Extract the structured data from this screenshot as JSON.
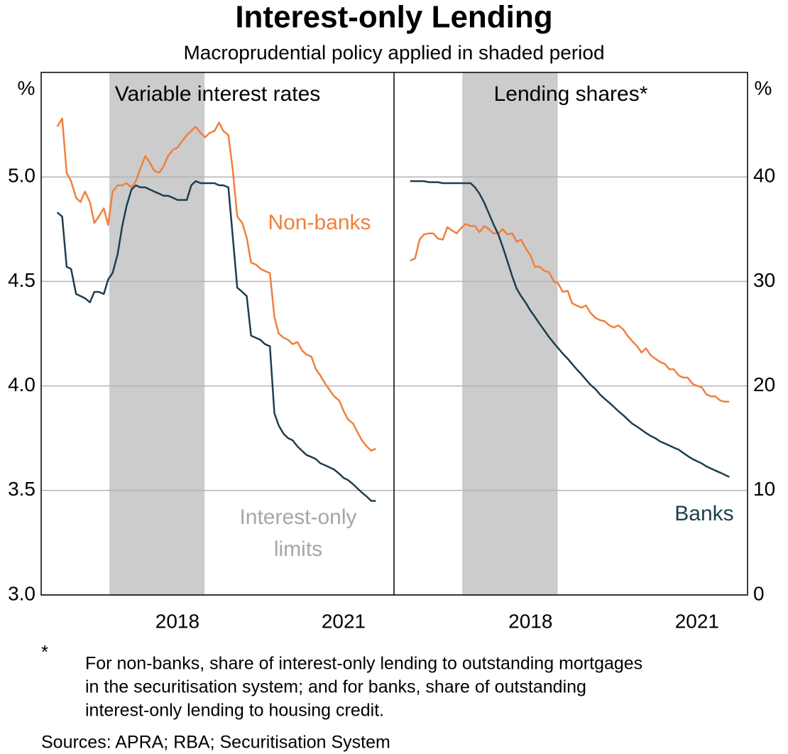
{
  "title": "Interest-only Lending",
  "subtitle": "Macroprudential policy applied in shaded period",
  "footnote": {
    "marker": "*",
    "lines": [
      "For non-banks, share of interest-only lending to outstanding mortgages",
      "in the securitisation system; and for banks, share of outstanding",
      "interest-only lending to housing credit."
    ]
  },
  "sources": "Sources: APRA; RBA; Securitisation System",
  "chart_data": [
    {
      "type": "line",
      "title": "Variable interest rates",
      "y_unit": "%",
      "xlim": [
        2016.04,
        2022.41
      ],
      "xticks": [
        {
          "value": 2018.5,
          "label": "2018"
        },
        {
          "value": 2021.5,
          "label": "2021"
        }
      ],
      "ylim": [
        3,
        5.5
      ],
      "yticks": [
        {
          "value": 3,
          "label": "3.0"
        },
        {
          "value": 3.5,
          "label": "3.5"
        },
        {
          "value": 4,
          "label": "4.0"
        },
        {
          "value": 4.5,
          "label": "4.5"
        },
        {
          "value": 5,
          "label": "5.0"
        }
      ],
      "grid": true,
      "shaded": [
        2017.27,
        2018.99
      ],
      "shaded_label": [
        "Interest-only",
        "limits"
      ],
      "x": [
        2016.33,
        2016.42,
        2016.5,
        2016.58,
        2016.67,
        2016.75,
        2016.83,
        2016.92,
        2017.0,
        2017.08,
        2017.17,
        2017.25,
        2017.33,
        2017.42,
        2017.5,
        2017.58,
        2017.67,
        2017.75,
        2017.83,
        2017.92,
        2018.0,
        2018.08,
        2018.17,
        2018.25,
        2018.33,
        2018.42,
        2018.5,
        2018.58,
        2018.67,
        2018.75,
        2018.83,
        2018.92,
        2019.0,
        2019.08,
        2019.17,
        2019.25,
        2019.33,
        2019.42,
        2019.5,
        2019.58,
        2019.67,
        2019.75,
        2019.83,
        2019.92,
        2020.0,
        2020.08,
        2020.17,
        2020.25,
        2020.33,
        2020.42,
        2020.5,
        2020.58,
        2020.67,
        2020.75,
        2020.83,
        2020.92,
        2021.0,
        2021.08,
        2021.17,
        2021.25,
        2021.33,
        2021.42,
        2021.5,
        2021.58,
        2021.67,
        2021.75,
        2021.83,
        2021.92,
        2022.0,
        2022.08
      ],
      "series": [
        {
          "name": "Non-banks",
          "color": "#f0803c",
          "show_name": true,
          "values": [
            5.24,
            5.28,
            5.02,
            4.98,
            4.9,
            4.88,
            4.93,
            4.88,
            4.78,
            4.81,
            4.85,
            4.77,
            4.93,
            4.96,
            4.96,
            4.97,
            4.95,
            4.98,
            5.04,
            5.1,
            5.07,
            5.03,
            5.02,
            5.05,
            5.1,
            5.13,
            5.14,
            5.17,
            5.2,
            5.22,
            5.24,
            5.21,
            5.19,
            5.21,
            5.22,
            5.26,
            5.22,
            5.2,
            5.03,
            4.81,
            4.78,
            4.71,
            4.59,
            4.58,
            4.56,
            4.55,
            4.54,
            4.33,
            4.25,
            4.23,
            4.22,
            4.2,
            4.21,
            4.17,
            4.15,
            4.14,
            4.08,
            4.05,
            4.01,
            3.98,
            3.95,
            3.93,
            3.88,
            3.84,
            3.82,
            3.78,
            3.74,
            3.71,
            3.69,
            3.7
          ]
        },
        {
          "name": "Banks",
          "color": "#1c3f4e",
          "show_name": false,
          "values": [
            4.83,
            4.81,
            4.57,
            4.56,
            4.44,
            4.43,
            4.42,
            4.4,
            4.45,
            4.45,
            4.44,
            4.51,
            4.54,
            4.63,
            4.76,
            4.86,
            4.94,
            4.96,
            4.95,
            4.95,
            4.94,
            4.93,
            4.92,
            4.91,
            4.91,
            4.9,
            4.89,
            4.89,
            4.89,
            4.96,
            4.98,
            4.97,
            4.97,
            4.97,
            4.97,
            4.96,
            4.96,
            4.95,
            4.71,
            4.47,
            4.45,
            4.43,
            4.24,
            4.23,
            4.22,
            4.2,
            4.19,
            3.87,
            3.81,
            3.77,
            3.75,
            3.74,
            3.71,
            3.69,
            3.67,
            3.66,
            3.65,
            3.63,
            3.62,
            3.61,
            3.6,
            3.58,
            3.56,
            3.55,
            3.53,
            3.51,
            3.49,
            3.47,
            3.45,
            3.45
          ]
        }
      ]
    },
    {
      "type": "line",
      "title": "Lending shares*",
      "y_unit": "%",
      "xlim": [
        2016.04,
        2022.41
      ],
      "xticks": [
        {
          "value": 2018.5,
          "label": "2018"
        },
        {
          "value": 2021.5,
          "label": "2021"
        }
      ],
      "ylim": [
        0,
        50
      ],
      "yticks": [
        0,
        10,
        20,
        30,
        40
      ],
      "grid": true,
      "shaded": [
        2017.27,
        2018.99
      ],
      "x": [
        2016.33,
        2016.42,
        2016.5,
        2016.58,
        2016.67,
        2016.75,
        2016.83,
        2016.92,
        2017.0,
        2017.08,
        2017.17,
        2017.25,
        2017.33,
        2017.42,
        2017.5,
        2017.58,
        2017.67,
        2017.75,
        2017.83,
        2017.92,
        2018.0,
        2018.08,
        2018.17,
        2018.25,
        2018.33,
        2018.42,
        2018.5,
        2018.58,
        2018.67,
        2018.75,
        2018.83,
        2018.92,
        2019.0,
        2019.08,
        2019.17,
        2019.25,
        2019.33,
        2019.42,
        2019.5,
        2019.58,
        2019.67,
        2019.75,
        2019.83,
        2019.92,
        2020.0,
        2020.08,
        2020.17,
        2020.25,
        2020.33,
        2020.42,
        2020.5,
        2020.58,
        2020.67,
        2020.75,
        2020.83,
        2020.92,
        2021.0,
        2021.08,
        2021.17,
        2021.25,
        2021.33,
        2021.42,
        2021.5,
        2021.58,
        2021.67,
        2021.75,
        2021.83,
        2021.92,
        2022.0,
        2022.08
      ],
      "series": [
        {
          "name": "Non-banks",
          "color": "#f0803c",
          "show_name": false,
          "values": [
            32.0,
            32.2,
            34.0,
            34.5,
            34.6,
            34.6,
            34.1,
            34.0,
            35.2,
            34.9,
            34.6,
            35.1,
            35.5,
            35.3,
            35.3,
            34.7,
            35.3,
            35.0,
            34.6,
            34.6,
            35.0,
            34.5,
            34.6,
            33.8,
            34.0,
            33.1,
            32.5,
            31.4,
            31.4,
            31.0,
            30.9,
            30.0,
            29.8,
            29.0,
            29.1,
            27.9,
            27.7,
            27.5,
            27.7,
            27.0,
            26.5,
            26.3,
            26.2,
            25.8,
            25.6,
            25.8,
            25.4,
            24.8,
            24.3,
            23.8,
            23.2,
            23.6,
            22.9,
            22.6,
            22.3,
            22.1,
            21.6,
            21.6,
            21.0,
            20.8,
            20.8,
            20.2,
            20.0,
            19.9,
            19.2,
            19.0,
            19.0,
            18.6,
            18.5,
            18.5
          ]
        },
        {
          "name": "Banks",
          "color": "#1c3f4e",
          "show_name": true,
          "values": [
            39.6,
            39.6,
            39.6,
            39.6,
            39.5,
            39.5,
            39.5,
            39.4,
            39.4,
            39.4,
            39.4,
            39.4,
            39.4,
            39.4,
            39.0,
            38.4,
            37.5,
            36.5,
            35.5,
            34.5,
            33.3,
            32.0,
            30.5,
            29.3,
            28.6,
            27.9,
            27.2,
            26.6,
            25.9,
            25.3,
            24.7,
            24.1,
            23.6,
            23.1,
            22.6,
            22.1,
            21.6,
            21.1,
            20.6,
            20.1,
            19.7,
            19.2,
            18.8,
            18.4,
            18.0,
            17.6,
            17.2,
            16.8,
            16.4,
            16.1,
            15.8,
            15.5,
            15.2,
            15.0,
            14.7,
            14.5,
            14.3,
            14.1,
            13.9,
            13.6,
            13.3,
            13.0,
            12.8,
            12.6,
            12.3,
            12.1,
            11.9,
            11.7,
            11.5,
            11.3
          ]
        }
      ]
    }
  ]
}
